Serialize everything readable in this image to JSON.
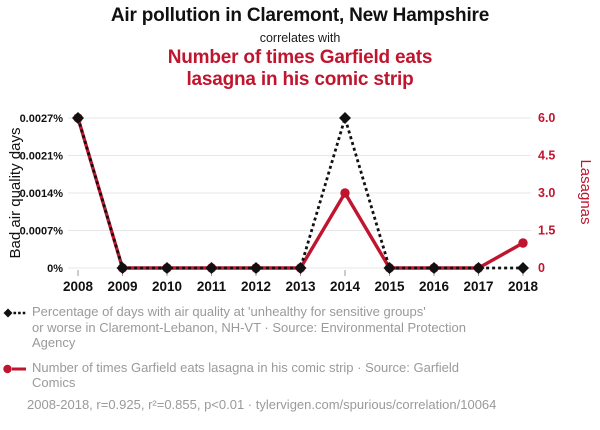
{
  "header": {
    "title": "Air pollution in Claremont, New Hampshire",
    "connector": "correlates with",
    "subtitle": "Number of times Garfield eats lasagna in his comic strip",
    "subtitle_lines": [
      "Number of times Garfield eats",
      "lasagna in his comic strip"
    ]
  },
  "colors": {
    "accent_red": "#c0152f",
    "series_black": "#111111",
    "legend_gray": "#9a9a9a",
    "gridline": "#e7e7e7",
    "tick_mark_gray": "#999999"
  },
  "chart_data": {
    "type": "line",
    "x": [
      2008,
      2009,
      2010,
      2011,
      2012,
      2013,
      2014,
      2015,
      2016,
      2017,
      2018
    ],
    "x_tick_labels": [
      "2008",
      "2009",
      "2010",
      "2011",
      "2012",
      "2013",
      "2014",
      "2015",
      "2016",
      "2017",
      "2018"
    ],
    "series": [
      {
        "name": "Bad air quality days",
        "axis": "left",
        "values": [
          0.0027,
          0,
          0,
          0,
          0,
          0,
          0.0027,
          0,
          0,
          0,
          0
        ],
        "color": "#111111",
        "line_style": "dashed",
        "marker": "diamond"
      },
      {
        "name": "Lasagnas",
        "axis": "right",
        "values": [
          6,
          0,
          0,
          0,
          0,
          0,
          3,
          0,
          0,
          0,
          1
        ],
        "color": "#c0152f",
        "line_style": "solid",
        "marker": "circle"
      }
    ],
    "y_left": {
      "label": "Bad air quality days",
      "tick_labels": [
        "0%",
        "0.0007%",
        "0.0014%",
        "0.0021%",
        "0.0027%"
      ],
      "range": [
        0,
        0.0027
      ]
    },
    "y_right": {
      "label": "Lasagnas",
      "tick_labels": [
        "0",
        "1.5",
        "3.0",
        "4.5",
        "6.0"
      ],
      "range": [
        0,
        6
      ]
    },
    "grid": "horizontal",
    "legend_position": "below"
  },
  "legend": [
    {
      "icon": "black-diamond-dashed-line-icon",
      "label": "Percentage of days with air quality at 'unhealthy for sensitive groups' or worse in Claremont-Lebanon, NH-VT · Source: Environmental Protection Agency",
      "lines": [
        "Percentage of days with air quality at 'unhealthy for sensitive groups'",
        "or worse in Claremont-Lebanon, NH-VT · Source: Environmental Protection",
        "Agency"
      ]
    },
    {
      "icon": "red-circle-solid-line-icon",
      "label": "Number of times Garfield eats lasagna in his comic strip · Source: Garfield Comics",
      "lines": [
        "Number of times Garfield eats lasagna in his comic strip · Source: Garfield",
        "Comics"
      ]
    }
  ],
  "footer": {
    "stats": "2008-2018, r=0.925, r²=0.855, p<0.01 · tylervigen.com/spurious/correlation/10064"
  }
}
